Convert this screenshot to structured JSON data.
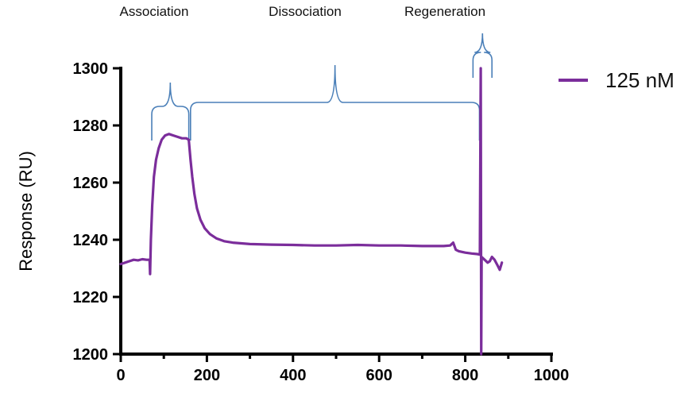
{
  "chart_data": {
    "type": "line",
    "title": "",
    "xlabel": "",
    "ylabel": "Response (RU)",
    "xlim": [
      0,
      1000
    ],
    "ylim": [
      1200,
      1300
    ],
    "x_ticks": [
      0,
      200,
      400,
      600,
      800,
      1000
    ],
    "y_ticks": [
      1200,
      1220,
      1240,
      1260,
      1280,
      1300
    ],
    "grid": false,
    "legend_position": "top-right",
    "series": [
      {
        "name": "125 nM",
        "color": "#7b2d9b",
        "points": [
          [
            0,
            1231.5
          ],
          [
            10,
            1232
          ],
          [
            20,
            1232.5
          ],
          [
            30,
            1233
          ],
          [
            40,
            1232.8
          ],
          [
            50,
            1233.2
          ],
          [
            60,
            1233
          ],
          [
            67,
            1233
          ],
          [
            68,
            1228
          ],
          [
            70,
            1240
          ],
          [
            73,
            1252
          ],
          [
            77,
            1262
          ],
          [
            82,
            1268
          ],
          [
            88,
            1272
          ],
          [
            95,
            1275
          ],
          [
            103,
            1276.5
          ],
          [
            112,
            1277
          ],
          [
            122,
            1276.5
          ],
          [
            132,
            1276
          ],
          [
            142,
            1275.5
          ],
          [
            152,
            1275.5
          ],
          [
            158,
            1275
          ],
          [
            162,
            1268
          ],
          [
            166,
            1262
          ],
          [
            171,
            1256
          ],
          [
            177,
            1251
          ],
          [
            185,
            1247
          ],
          [
            195,
            1244
          ],
          [
            207,
            1242
          ],
          [
            222,
            1240.5
          ],
          [
            240,
            1239.5
          ],
          [
            260,
            1239
          ],
          [
            300,
            1238.5
          ],
          [
            350,
            1238.3
          ],
          [
            400,
            1238.2
          ],
          [
            450,
            1238
          ],
          [
            500,
            1238
          ],
          [
            550,
            1238.2
          ],
          [
            600,
            1238
          ],
          [
            650,
            1238
          ],
          [
            700,
            1237.8
          ],
          [
            750,
            1237.8
          ],
          [
            765,
            1238
          ],
          [
            772,
            1239
          ],
          [
            778,
            1236.5
          ],
          [
            785,
            1236
          ],
          [
            800,
            1235.5
          ],
          [
            815,
            1235.2
          ],
          [
            828,
            1235
          ],
          [
            834,
            1234.8
          ],
          [
            836,
            1300
          ],
          [
            837,
            1200
          ],
          [
            838,
            1234
          ],
          [
            845,
            1233
          ],
          [
            852,
            1232
          ],
          [
            857,
            1232.5
          ],
          [
            862,
            1234
          ],
          [
            868,
            1233
          ],
          [
            875,
            1231
          ],
          [
            880,
            1229.5
          ],
          [
            885,
            1232
          ]
        ]
      }
    ],
    "phases": [
      {
        "label": "Association",
        "start": 72,
        "end": 158
      },
      {
        "label": "Dissociation",
        "start": 162,
        "end": 833
      },
      {
        "label": "Regeneration",
        "start": 818,
        "end": 862
      }
    ],
    "phase_color": "#4a7fb8"
  }
}
